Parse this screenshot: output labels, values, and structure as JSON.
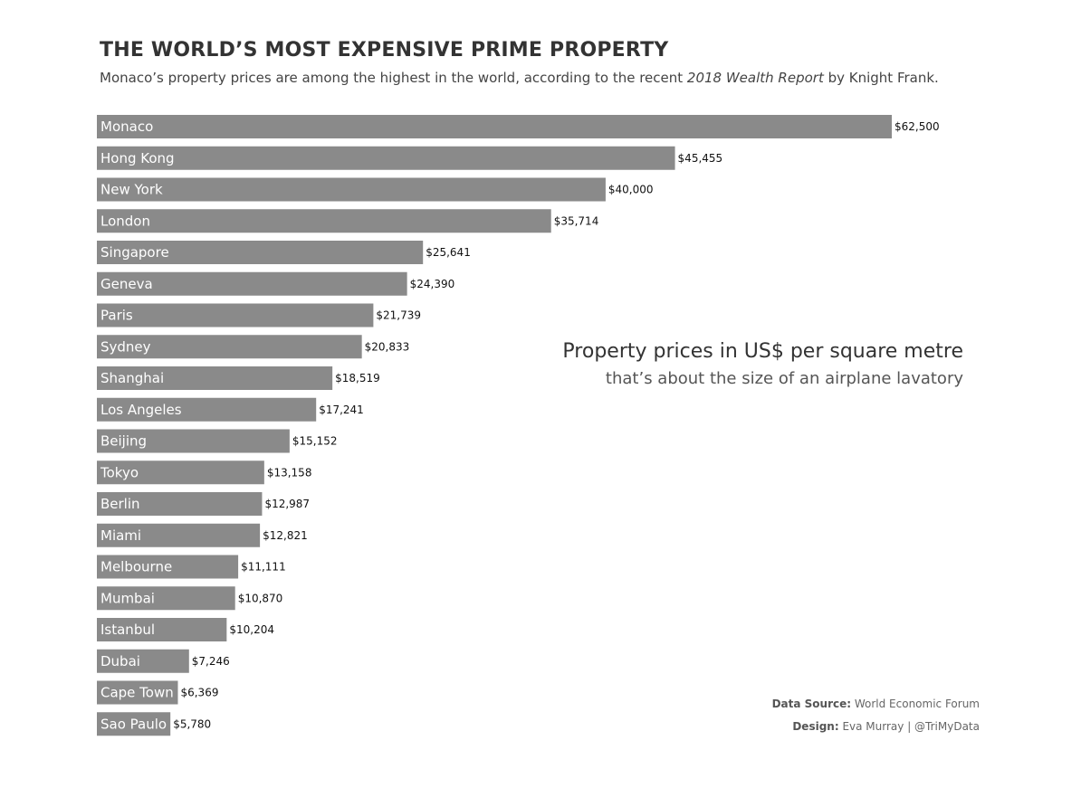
{
  "header": {
    "title": "THE WORLD’S MOST EXPENSIVE PRIME PROPERTY",
    "subtitle_pre": "Monaco’s property prices are among the highest in the world, according to the recent ",
    "subtitle_em": "2018 Wealth Report",
    "subtitle_post": " by Knight Frank."
  },
  "annotation": {
    "main": "Property prices in US$ per square metre",
    "sub": "that’s about the  size of an airplane  lavatory"
  },
  "credits": {
    "source_label": "Data Source:",
    "source_value": " World Economic Forum",
    "design_label": "Design:",
    "design_value": " Eva Murray | @TriMyData"
  },
  "colors": {
    "bar": "#8a8a8a",
    "bar_label": "#ffffff",
    "value_label": "#111111"
  },
  "chart_data": {
    "type": "bar",
    "orientation": "horizontal",
    "categories": [
      "Monaco",
      "Hong Kong",
      "New York",
      "London",
      "Singapore",
      "Geneva",
      "Paris",
      "Sydney",
      "Shanghai",
      "Los Angeles",
      "Beijing",
      "Tokyo",
      "Berlin",
      "Miami",
      "Melbourne",
      "Mumbai",
      "Istanbul",
      "Dubai",
      "Cape Town",
      "Sao Paulo"
    ],
    "values": [
      62500,
      45455,
      40000,
      35714,
      25641,
      24390,
      21739,
      20833,
      18519,
      17241,
      15152,
      13158,
      12987,
      12821,
      11111,
      10870,
      10204,
      7246,
      6369,
      5780
    ],
    "value_labels": [
      "$62,500",
      "$45,455",
      "$40,000",
      "$35,714",
      "$25,641",
      "$24,390",
      "$21,739",
      "$20,833",
      "$18,519",
      "$17,241",
      "$15,152",
      "$13,158",
      "$12,987",
      "$12,821",
      "$11,111",
      "$10,870",
      "$10,204",
      "$7,246",
      "$6,369",
      "$5,780"
    ],
    "xlim": [
      0,
      62500
    ],
    "grid": false,
    "legend": "none"
  }
}
